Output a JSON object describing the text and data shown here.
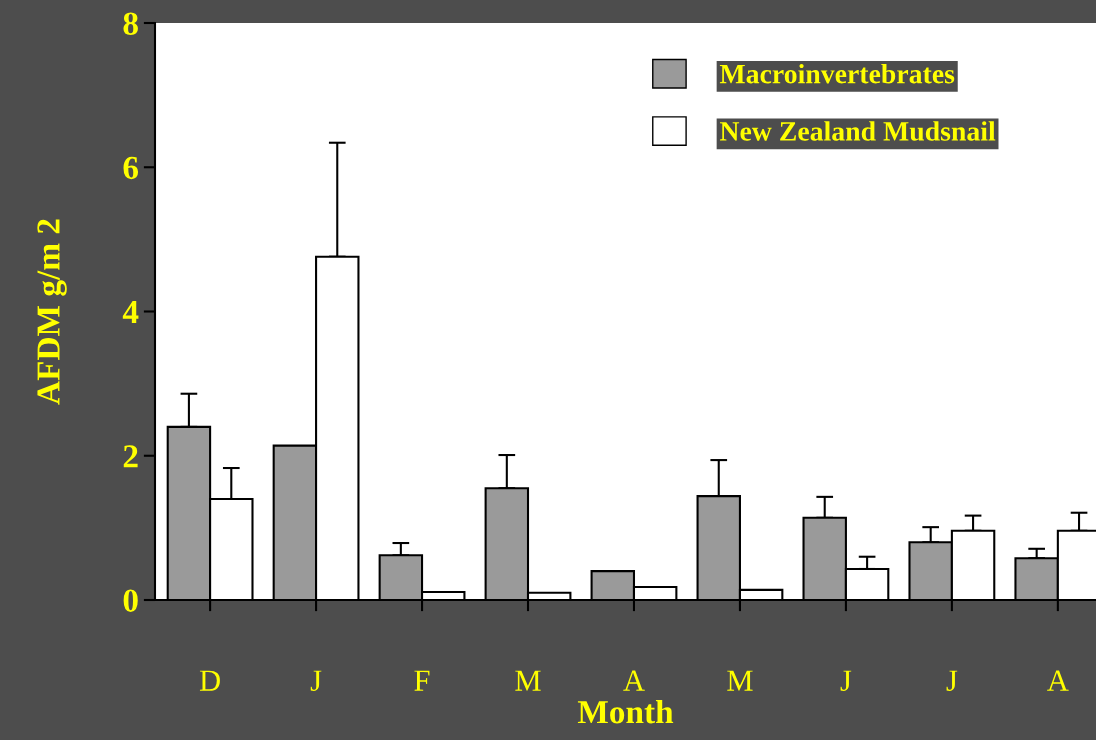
{
  "chart_data": {
    "type": "bar",
    "xlabel": "Month",
    "ylabel": "AFDM g/m 2",
    "categories": [
      "D",
      "J",
      "F",
      "M",
      "A",
      "M",
      "J",
      "J",
      "A"
    ],
    "series": [
      {
        "name": "Macroinvertebrates",
        "color": "#9a9a9a",
        "values": [
          2.4,
          2.14,
          0.62,
          1.55,
          0.4,
          1.44,
          1.14,
          0.8,
          0.58
        ],
        "errors": [
          [
            2.4,
            2.86
          ],
          null,
          [
            0.62,
            0.79
          ],
          [
            1.55,
            2.01
          ],
          null,
          [
            1.44,
            1.94
          ],
          [
            1.14,
            1.43
          ],
          [
            0.8,
            1.01
          ],
          [
            0.58,
            0.71
          ]
        ]
      },
      {
        "name": "New Zealand Mudsnail",
        "color": "#ffffff",
        "values": [
          1.4,
          4.76,
          0.11,
          0.1,
          0.18,
          0.14,
          0.43,
          0.96,
          0.96
        ],
        "errors": [
          [
            1.4,
            1.83
          ],
          [
            4.76,
            6.34
          ],
          null,
          null,
          null,
          null,
          [
            0.43,
            0.6
          ],
          [
            0.96,
            1.17
          ],
          [
            0.96,
            1.21
          ]
        ]
      }
    ],
    "ylim": [
      0,
      8
    ],
    "yticks": [
      0,
      2,
      4,
      6,
      8
    ],
    "grid": false,
    "legend": "top right"
  }
}
